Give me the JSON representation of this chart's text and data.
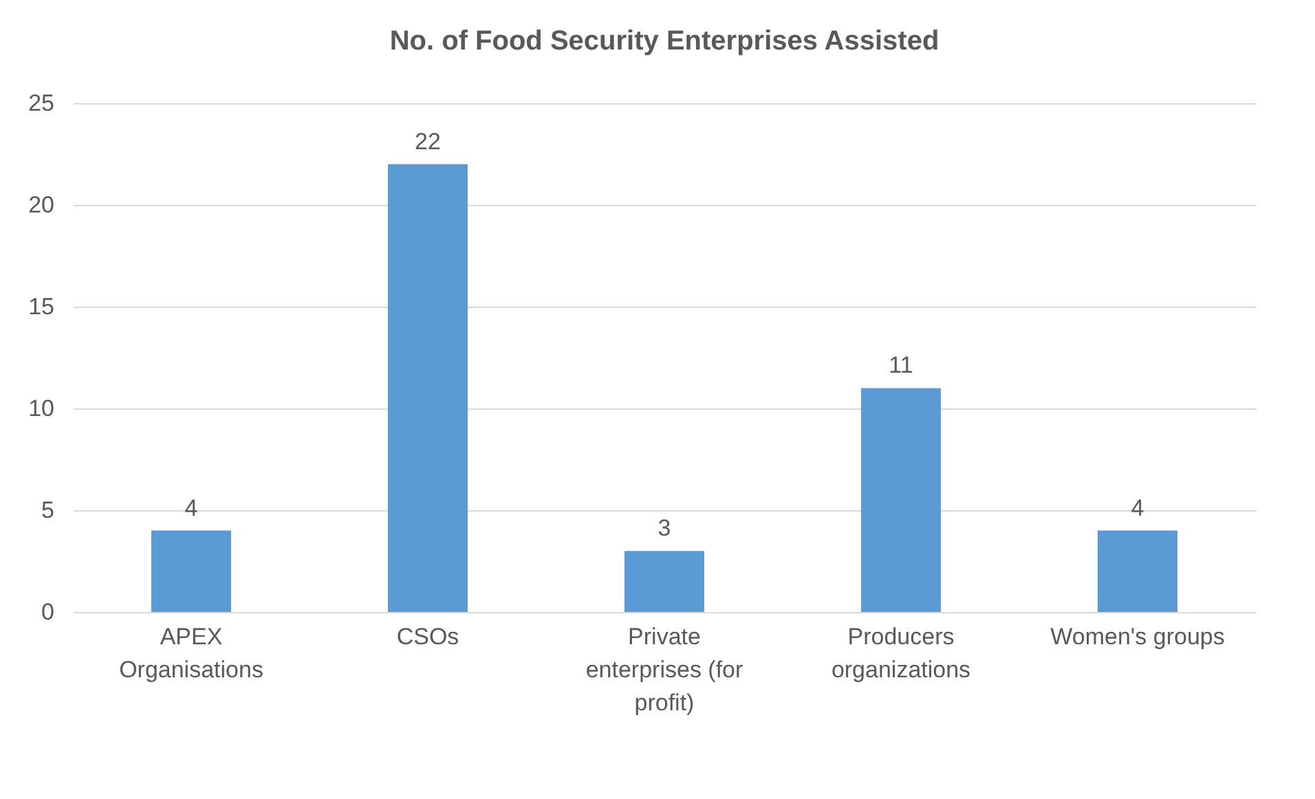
{
  "chart_data": {
    "type": "bar",
    "title": "No. of Food Security Enterprises Assisted",
    "categories": [
      "APEX Organisations",
      "CSOs",
      "Private enterprises (for profit)",
      "Producers organizations",
      "Women's groups"
    ],
    "values": [
      4,
      22,
      3,
      11,
      4
    ],
    "color": "#5b9bd5",
    "data_labels": true,
    "ylim": [
      0,
      25
    ],
    "yticks": [
      0,
      5,
      10,
      15,
      20,
      25
    ],
    "grid": "y"
  }
}
